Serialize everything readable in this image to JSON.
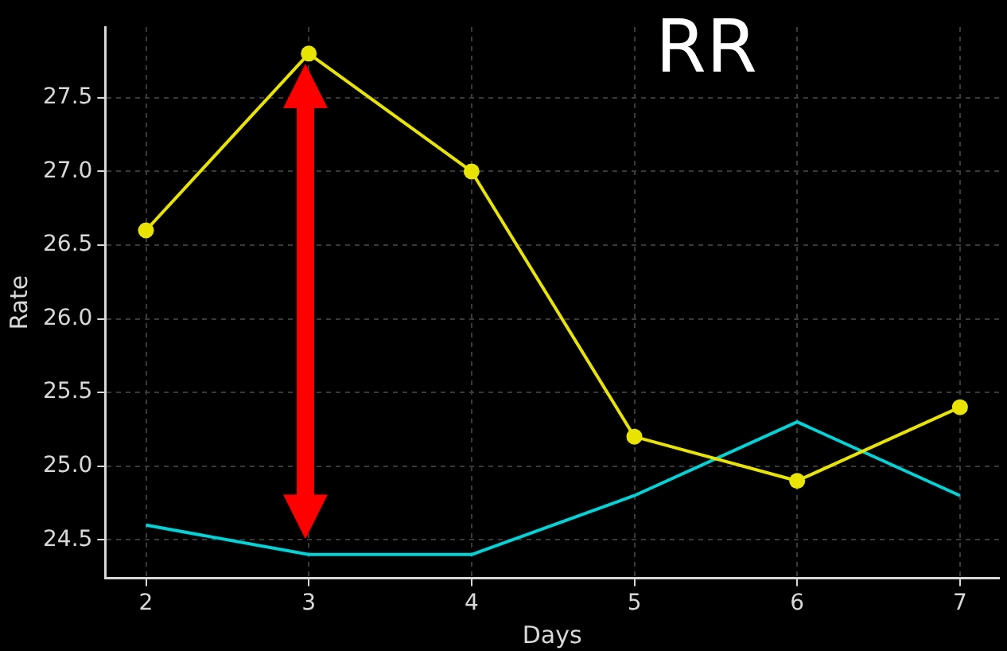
{
  "chart_data": {
    "type": "line",
    "xlabel": "Days",
    "ylabel": "Rate",
    "annotations": [
      "RR"
    ],
    "x": [
      2,
      3,
      4,
      5,
      6,
      7
    ],
    "series": [
      {
        "color": "#e8e400",
        "values": [
          26.6,
          27.8,
          27.0,
          25.2,
          24.9,
          25.4
        ],
        "marker": "circle"
      },
      {
        "color": "#00d4d8",
        "values": [
          24.6,
          24.4,
          24.4,
          24.8,
          25.3,
          24.8
        ],
        "marker": "none"
      }
    ],
    "xlim": [
      1.75,
      7.24
    ],
    "xticks": [
      2,
      3,
      4,
      5,
      6,
      7
    ],
    "ylim": [
      24.24,
      27.98
    ],
    "yticks": [
      24.5,
      {
        "value": 25,
        "label": "25.0"
      },
      25.5,
      {
        "value": 26,
        "label": "26.0"
      },
      26.5,
      {
        "value": 27,
        "label": "27.0"
      },
      27.5
    ],
    "grid": true,
    "legend": false,
    "line_style": "solid"
  }
}
